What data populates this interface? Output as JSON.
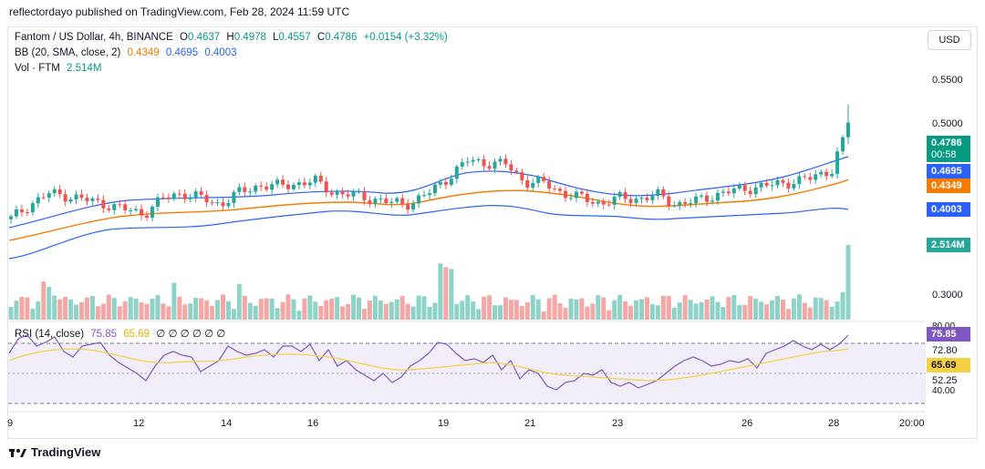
{
  "publisher_line": "reflectordayo published on TradingView.com, Feb 28, 2024 11:59 UTC",
  "legend": {
    "symbol": "Fantom / US Dollar, 4h, BINANCE",
    "o_label": "O",
    "o": "0.4637",
    "h_label": "H",
    "h": "0.4978",
    "l_label": "L",
    "l": "0.4557",
    "c_label": "C",
    "c": "0.4786",
    "change": "+0.0154 (+3.32%)",
    "bb_label": "BB (20, SMA, close, 2)",
    "bb_basis": "0.4349",
    "bb_upper": "0.4695",
    "bb_lower": "0.4003",
    "vol_label": "Vol · FTM",
    "vol_value": "2.514M",
    "rsi_label": "RSI (14, close)",
    "rsi_value": "75.85",
    "rsi_ma": "65.69",
    "rsi_empty": "∅ ∅ ∅ ∅ ∅ ∅"
  },
  "currency": "USD",
  "price_axis": [
    "0.5500",
    "0.5000",
    "0.3000"
  ],
  "price_tags": {
    "last": "0.4786",
    "countdown": "00:58",
    "bb_upper": "0.4695",
    "bb_basis": "0.4349",
    "bb_lower": "0.4003",
    "volume": "2.514M"
  },
  "rsi_axis": [
    "80.00",
    "72.80",
    "52.25",
    "40.00"
  ],
  "rsi_tags": {
    "rsi": "75.85",
    "ma": "65.69"
  },
  "time_axis": [
    "9",
    "12",
    "14",
    "16",
    "19",
    "21",
    "23",
    "26",
    "28",
    "20:00"
  ],
  "brand": "TradingView",
  "colors": {
    "up": "#26a69a",
    "down": "#ef5350",
    "bb_band": "#2962ff",
    "bb_basis": "#f57c00",
    "rsi": "#7e57c2",
    "rsi_ma": "#f5d142"
  },
  "chart_data": {
    "type": "candlestick",
    "title": "Fantom / US Dollar, 4h, BINANCE",
    "interval": "4h",
    "x": [
      "9",
      "12",
      "14",
      "16",
      "19",
      "21",
      "23",
      "26",
      "28"
    ],
    "y_range": [
      0.28,
      0.57
    ],
    "approx_close_path": [
      0.376,
      0.392,
      0.403,
      0.401,
      0.396,
      0.392,
      0.386,
      0.382,
      0.398,
      0.404,
      0.398,
      0.392,
      0.404,
      0.412,
      0.411,
      0.414,
      0.416,
      0.404,
      0.401,
      0.398,
      0.393,
      0.393,
      0.404,
      0.421,
      0.438,
      0.436,
      0.434,
      0.416,
      0.414,
      0.404,
      0.398,
      0.393,
      0.398,
      0.398,
      0.401,
      0.392,
      0.395,
      0.402,
      0.406,
      0.41,
      0.412,
      0.416,
      0.419,
      0.428,
      0.437
    ],
    "volume_series": "per-candle volume bars; last = 2.514M",
    "rsi": {
      "last": 75.85,
      "ma_last": 65.69,
      "levels": [
        70,
        50,
        30
      ]
    }
  }
}
